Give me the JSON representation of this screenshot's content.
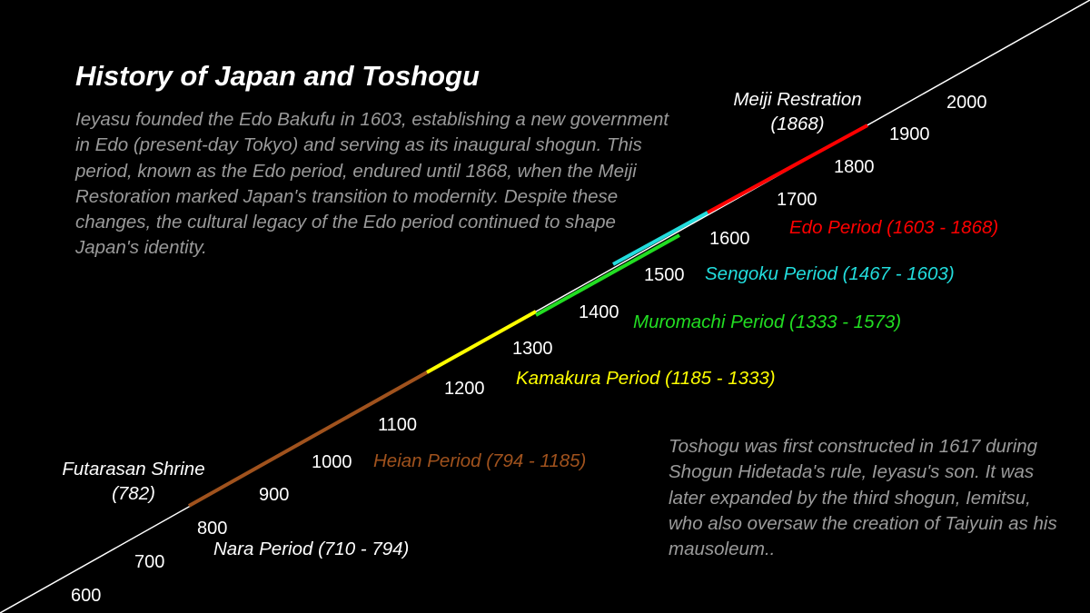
{
  "title": "History of Japan and Toshogu",
  "intro": "Ieyasu founded the Edo Bakufu in 1603, establishing a new government in Edo (present-day Tokyo) and serving as its inaugural shogun. This period, known as the Edo period, endured until 1868, when the Meiji Restoration marked Japan's transition to modernity. Despite these changes, the cultural legacy of the Edo period continued to shape Japan's identity.",
  "note": "Toshogu was first constructed in 1617 during Shogun Hidetada's rule, Ieyasu's son. It was later expanded by the third shogun, Iemitsu, who also oversaw the creation of Taiyuin as his mausoleum..",
  "years": [
    "600",
    "700",
    "800",
    "900",
    "1000",
    "1100",
    "1200",
    "1300",
    "1400",
    "1500",
    "1600",
    "1700",
    "1800",
    "1900",
    "2000"
  ],
  "periods": {
    "nara": {
      "label": "Nara Period (710 - 794)",
      "color": "#ffffff"
    },
    "heian": {
      "label": "Heian Period (794 - 1185)",
      "color": "#a0521d"
    },
    "kamakura": {
      "label": "Kamakura Period (1185 - 1333)",
      "color": "#ffff00"
    },
    "muromachi": {
      "label": "Muromachi Period (1333 - 1573)",
      "color": "#22dd22"
    },
    "sengoku": {
      "label": "Sengoku Period (1467 - 1603)",
      "color": "#22dddd"
    },
    "edo": {
      "label": "Edo Period (1603 - 1868)",
      "color": "#ff0000"
    }
  },
  "events": {
    "futarasan": {
      "line1": "Futarasan Shrine",
      "line2": "(782)"
    },
    "meiji": {
      "line1": "Meiji Restration",
      "line2": "(1868)"
    }
  }
}
